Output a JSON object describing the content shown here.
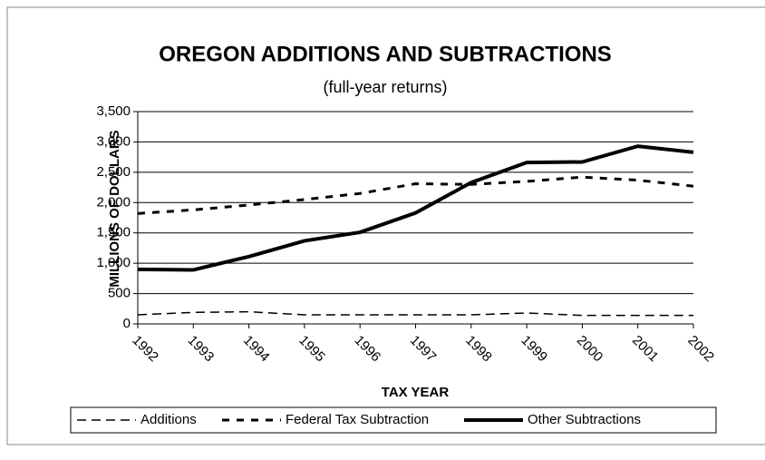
{
  "chart_data": {
    "type": "line",
    "title": "OREGON ADDITIONS AND SUBTRACTIONS",
    "subtitle": "(full-year returns)",
    "x_label": "TAX YEAR",
    "y_label": "MILLIONS OF DOLLARS",
    "categories": [
      "1992",
      "1993",
      "1994",
      "1995",
      "1996",
      "1997",
      "1998",
      "1999",
      "2000",
      "2001",
      "2002"
    ],
    "series": [
      {
        "name": "Additions",
        "color": "#000000",
        "linestyle": "dashed",
        "values": [
          150,
          190,
          200,
          150,
          150,
          150,
          150,
          180,
          140,
          140,
          140
        ]
      },
      {
        "name": "Federal Tax Subtraction",
        "color": "#000000",
        "linestyle": "dotted",
        "values": [
          1820,
          1880,
          1960,
          2050,
          2150,
          2310,
          2300,
          2350,
          2420,
          2370,
          2270
        ]
      },
      {
        "name": "Other Subtractions",
        "color": "#000000",
        "linestyle": "solid",
        "values": [
          900,
          890,
          1110,
          1370,
          1510,
          1830,
          2330,
          2660,
          2670,
          2930,
          2830
        ]
      }
    ],
    "ylim": [
      0,
      3500
    ],
    "yticks": [
      0,
      500,
      {
        "value": 1000,
        "label": "1,000"
      },
      {
        "value": 1500,
        "label": "1,500"
      },
      {
        "value": 2000,
        "label": "2,000"
      },
      {
        "value": 2500,
        "label": "2,500"
      },
      {
        "value": 3000,
        "label": "3,000"
      },
      {
        "value": 3500,
        "label": "3,500"
      }
    ],
    "grid": true,
    "legend": "bottom"
  }
}
